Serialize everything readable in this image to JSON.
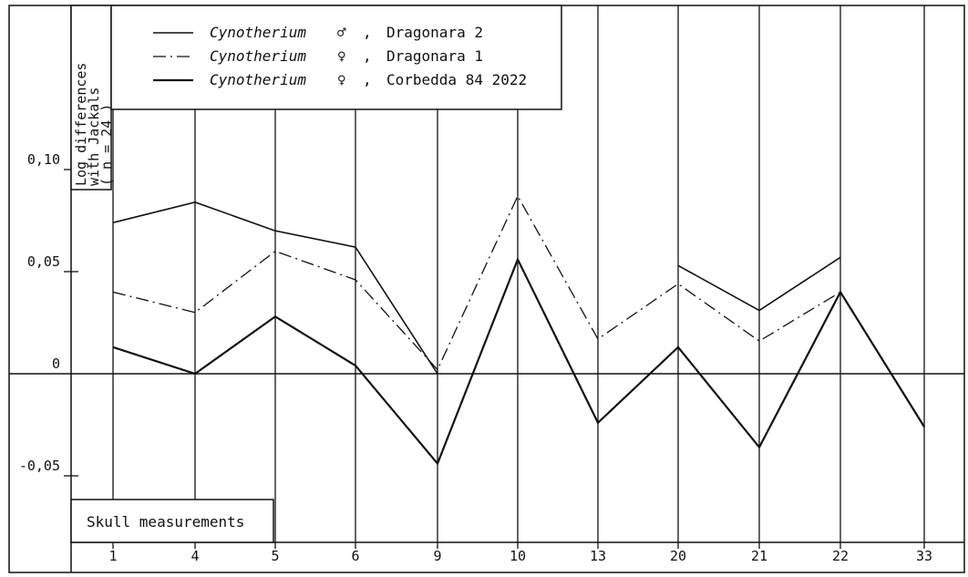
{
  "chart_data": {
    "type": "line",
    "ylabel_lines": [
      "Log differences",
      "with Jackals",
      "( n = 24 )"
    ],
    "xlabel": "Skull measurements",
    "categories": [
      "1",
      "4",
      "5",
      "6",
      "9",
      "10",
      "13",
      "20",
      "21",
      "22",
      "33"
    ],
    "y_ticks": [
      {
        "value": 0.1,
        "label": "0,10"
      },
      {
        "value": 0.05,
        "label": "0,05"
      },
      {
        "value": 0,
        "label": "0"
      },
      {
        "value": -0.05,
        "label": "-0,05"
      }
    ],
    "ylim": [
      -0.09,
      0.18
    ],
    "grid": "vertical lines at each category; horizontal zero line",
    "legend_position": "top-left",
    "series": [
      {
        "genus": "Cynotherium",
        "sex": "♂",
        "site": "Dragonara 2",
        "style": "solid",
        "segments": [
          [
            0,
            0.074
          ],
          [
            1,
            0.084
          ],
          [
            2,
            0.07
          ],
          [
            3,
            0.062
          ],
          [
            4,
            0.0
          ]
        ],
        "segments2": [
          [
            7,
            0.053
          ],
          [
            8,
            0.031
          ],
          [
            9,
            0.057
          ]
        ]
      },
      {
        "genus": "Cynotherium",
        "sex": "♀",
        "site": "Dragonara 1",
        "style": "dash-dot",
        "segments": [
          [
            0,
            0.04
          ],
          [
            1,
            0.03
          ],
          [
            2,
            0.06
          ],
          [
            3,
            0.046
          ],
          [
            4,
            0.002
          ],
          [
            5,
            0.087
          ],
          [
            6,
            0.017
          ],
          [
            7,
            0.044
          ],
          [
            8,
            0.016
          ],
          [
            9,
            0.04
          ]
        ]
      },
      {
        "genus": "Cynotherium",
        "sex": "♀",
        "site": "Corbedda 84 2022",
        "style": "solid-bold",
        "segments": [
          [
            0,
            0.013
          ],
          [
            1,
            0.0
          ],
          [
            2,
            0.028
          ],
          [
            3,
            0.004
          ],
          [
            4,
            -0.044
          ],
          [
            5,
            0.056
          ],
          [
            6,
            -0.024
          ],
          [
            7,
            0.013
          ],
          [
            8,
            -0.036
          ],
          [
            9,
            0.04
          ],
          [
            10,
            -0.026
          ]
        ]
      }
    ],
    "legend_separator": ","
  }
}
